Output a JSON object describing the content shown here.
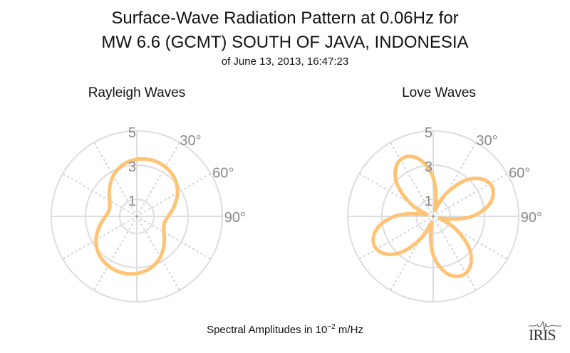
{
  "title_line1": "Surface-Wave Radiation Pattern at 0.06Hz for",
  "title_line2": "MW 6.6 (GCMT) SOUTH OF JAVA, INDONESIA",
  "subtitle": "of June 13, 2013, 16:47:23",
  "footer": {
    "prefix": "Spectral Amplitudes in 10",
    "exponent": "−2",
    "suffix": " m/Hz"
  },
  "logo_text": "IRIS",
  "colors": {
    "curve": "#ffc375",
    "grid": "#dddddd",
    "label": "#888888"
  },
  "chart_data": [
    {
      "type": "polar-line",
      "title": "Rayleigh Waves",
      "radial_ticks": [
        "1",
        "3",
        "5"
      ],
      "radial_tick_values": [
        1,
        3,
        5
      ],
      "rlim": [
        0,
        5
      ],
      "angle_labels": [
        "30°",
        "60°",
        "90°"
      ],
      "angle_label_values": [
        30,
        60,
        90
      ],
      "azimuth_deg": [
        0,
        15,
        30,
        45,
        60,
        75,
        90,
        105,
        120,
        135,
        150,
        165,
        180,
        195,
        210,
        225,
        240,
        255,
        270,
        285,
        300,
        315,
        330,
        345
      ],
      "amplitude": [
        3.34,
        3.41,
        3.34,
        3.13,
        2.75,
        2.26,
        1.83,
        1.66,
        1.83,
        2.26,
        2.75,
        3.13,
        3.34,
        3.41,
        3.34,
        3.13,
        2.75,
        2.26,
        1.83,
        1.66,
        1.83,
        2.26,
        2.75,
        3.13
      ]
    },
    {
      "type": "polar-line",
      "title": "Love Waves",
      "radial_ticks": [
        "1",
        "3",
        "5"
      ],
      "radial_tick_values": [
        1,
        3,
        5
      ],
      "rlim": [
        0,
        5
      ],
      "angle_labels": [
        "30°",
        "60°",
        "90°"
      ],
      "angle_label_values": [
        30,
        60,
        90
      ],
      "azimuth_deg": [
        0,
        15,
        30,
        45,
        60,
        75,
        90,
        105,
        120,
        135,
        150,
        165,
        180,
        195,
        210,
        225,
        240,
        255,
        270,
        285,
        300,
        315,
        330,
        345
      ],
      "amplitude": [
        2.26,
        0.4,
        1.57,
        3.11,
        3.83,
        3.52,
        2.26,
        0.4,
        1.57,
        3.11,
        3.83,
        3.52,
        2.26,
        0.4,
        1.57,
        3.11,
        3.83,
        3.52,
        2.26,
        0.4,
        1.57,
        3.11,
        3.83,
        3.52
      ]
    }
  ]
}
